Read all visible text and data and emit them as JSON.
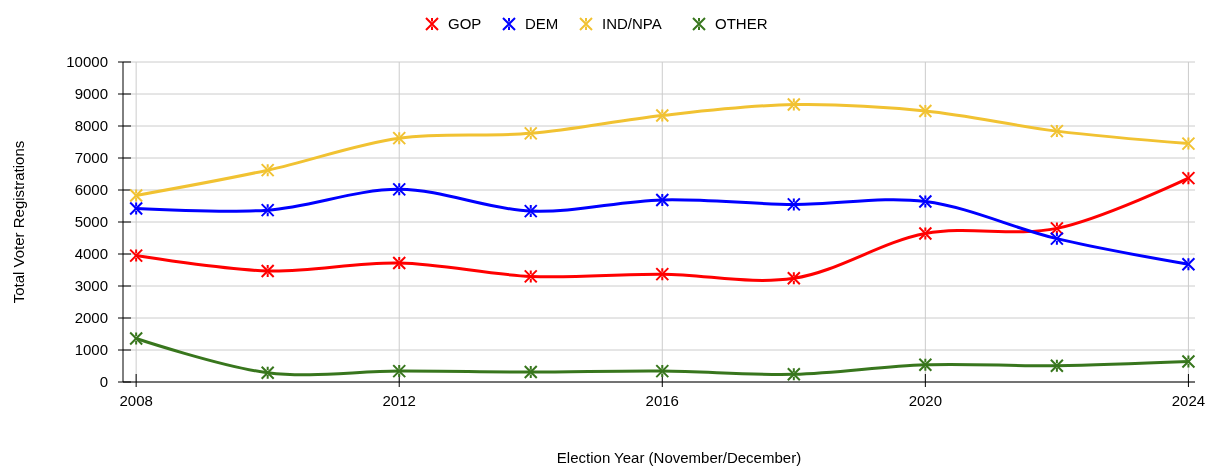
{
  "chart_data": {
    "type": "line",
    "xlabel": "Election Year (November/December)",
    "ylabel": "Total Voter Registrations",
    "x": [
      2008,
      2010,
      2012,
      2014,
      2016,
      2018,
      2020,
      2022,
      2024
    ],
    "series": [
      {
        "name": "GOP",
        "color": "#ff0000",
        "values": [
          3950,
          3470,
          3720,
          3300,
          3370,
          3240,
          4640,
          4800,
          6370
        ]
      },
      {
        "name": "DEM",
        "color": "#0000ff",
        "values": [
          5420,
          5370,
          6020,
          5340,
          5690,
          5550,
          5640,
          4480,
          3680
        ]
      },
      {
        "name": "IND/NPA",
        "color": "#f1c232",
        "values": [
          5830,
          6620,
          7620,
          7770,
          8330,
          8670,
          8470,
          7840,
          7450
        ]
      },
      {
        "name": "OTHER",
        "color": "#38761d",
        "values": [
          1360,
          290,
          340,
          310,
          340,
          240,
          540,
          510,
          640
        ]
      }
    ],
    "xlim": [
      2007.8,
      2024.1
    ],
    "xticks": [
      2008,
      2012,
      2016,
      2020,
      2024
    ],
    "ylim": [
      0,
      10000
    ],
    "yticks": [
      0,
      1000,
      2000,
      3000,
      4000,
      5000,
      6000,
      7000,
      8000,
      9000,
      10000
    ],
    "grid": true,
    "legend": "top",
    "marker": "cross",
    "line_style": "solid"
  }
}
